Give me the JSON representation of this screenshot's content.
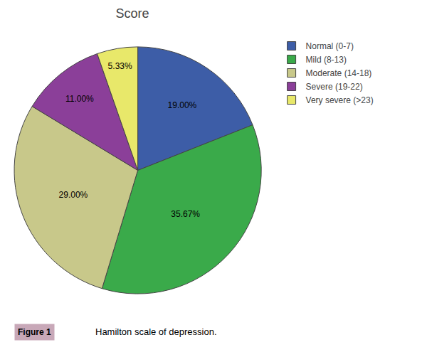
{
  "chart_data": {
    "type": "pie",
    "title": "Score",
    "categories": [
      "Normal (0-7)",
      "Mild (8-13)",
      "Moderate (14-18)",
      "Severe (19-22)",
      "Very severe (>23)"
    ],
    "values": [
      19.0,
      35.67,
      29.0,
      11.0,
      5.33
    ],
    "value_labels": [
      "19.00%",
      "35.67%",
      "29.00%",
      "11.00%",
      "5.33%"
    ],
    "colors": [
      "#3d5da7",
      "#3aaa4a",
      "#c8c88a",
      "#8b3f99",
      "#e8e86a"
    ],
    "data_labels": true,
    "legend": "upper right",
    "annotations": [
      "Figure 1",
      "Hamilton scale of depression."
    ]
  }
}
